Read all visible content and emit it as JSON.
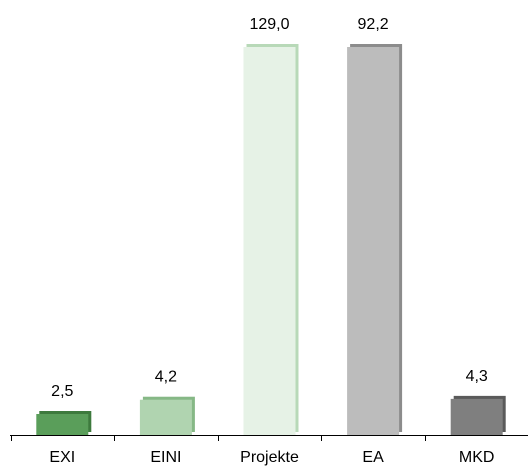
{
  "chart_data": {
    "type": "bar",
    "categories": [
      "EXI",
      "EINI",
      "Projekte",
      "EA",
      "MKD"
    ],
    "values": [
      2.5,
      4.2,
      129.0,
      92.2,
      4.3
    ],
    "value_labels": [
      "2,5",
      "4,2",
      "129,0",
      "92,2",
      "4,3"
    ],
    "bar_colors": [
      "#5a9e5a",
      "#b0d4b0",
      "#e6f2e6",
      "#bcbcbc",
      "#7f7f7f"
    ],
    "edge_colors": [
      "#3d7a3d",
      "#86b886",
      "#b8d9b8",
      "#8c8c8c",
      "#5a5a5a"
    ],
    "axis_scale": "broken",
    "title": "",
    "xlabel": "",
    "ylabel": "",
    "grid": false,
    "legend": "none"
  }
}
